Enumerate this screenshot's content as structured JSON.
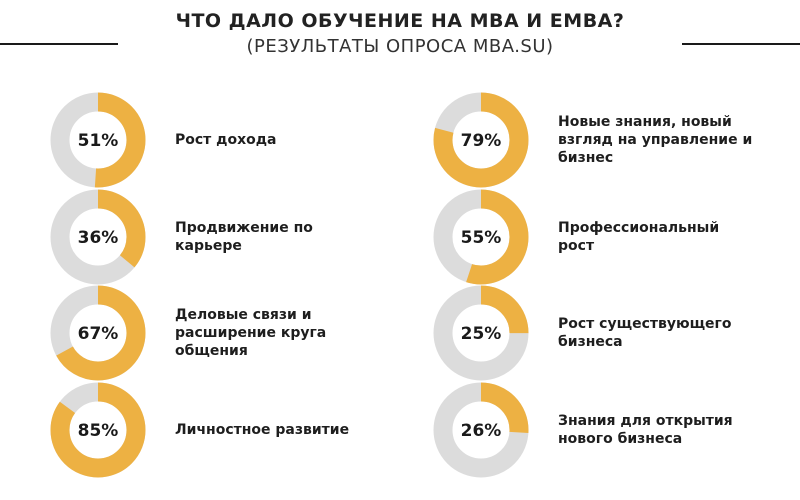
{
  "header": {
    "title": "ЧТО ДАЛО ОБУЧЕНИЕ НА MBA И EMBA?",
    "subtitle": "(РЕЗУЛЬТАТЫ ОПРОСА MBA.SU)"
  },
  "colors": {
    "accent": "#EDB143",
    "track": "#DCDCDC",
    "text": "#1A1A1A"
  },
  "chart_data": {
    "type": "pie",
    "title": "ЧТО ДАЛО ОБУЧЕНИЕ НА MBA И EMBA?",
    "subtitle": "(РЕЗУЛЬТАТЫ ОПРОСА MBA.SU)",
    "categories": [
      "Рост дохода",
      "Продвижение по карьере",
      "Деловые связи и расширение круга общения",
      "Личностное развитие",
      "Новые знания, новый взгляд на управление и бизнес",
      "Профессиональный рост",
      "Рост существующего бизнеса",
      "Знания для открытия нового бизнеса"
    ],
    "values": [
      51,
      36,
      67,
      85,
      79,
      55,
      25,
      26
    ],
    "value_labels": [
      "51%",
      "36%",
      "67%",
      "85%",
      "79%",
      "55%",
      "25%",
      "26%"
    ],
    "unit": "%"
  },
  "items": [
    {
      "value_label": "51%",
      "label_lines": [
        "Рост дохода"
      ]
    },
    {
      "value_label": "36%",
      "label_lines": [
        "Продвижение по",
        "карьере"
      ]
    },
    {
      "value_label": "67%",
      "label_lines": [
        "Деловые связи и",
        "расширение круга",
        "общения"
      ]
    },
    {
      "value_label": "85%",
      "label_lines": [
        "Личностное развитие"
      ]
    },
    {
      "value_label": "79%",
      "label_lines": [
        "Новые знания, новый",
        "взгляд на управление и",
        "бизнес"
      ]
    },
    {
      "value_label": "55%",
      "label_lines": [
        "Профессиональный",
        "рост"
      ]
    },
    {
      "value_label": "25%",
      "label_lines": [
        "Рост существующего",
        "бизнеса"
      ]
    },
    {
      "value_label": "26%",
      "label_lines": [
        "Знания для открытия",
        "нового бизнеса"
      ]
    }
  ]
}
